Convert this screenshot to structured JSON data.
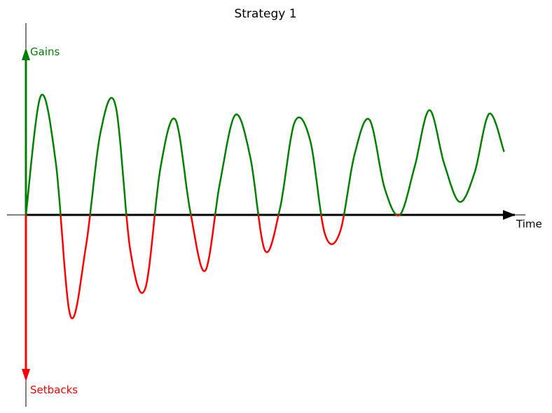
{
  "chart_data": {
    "type": "line",
    "title": "Strategy 1",
    "xlabel": "Time",
    "ylabel_positive": "Gains",
    "ylabel_negative": "Setbacks",
    "grid": false,
    "xlim": [
      0,
      10
    ],
    "ylim": [
      -1.6,
      1.6
    ],
    "colors": {
      "gains": "#008000",
      "setbacks": "#ff0000",
      "axis": "#000000"
    },
    "series": [
      {
        "x": [
          0,
          0.31,
          0.62,
          0.93,
          1.25,
          1.56,
          1.87,
          2.18,
          2.49,
          2.81,
          3.12,
          3.43,
          3.74,
          4.05,
          4.37,
          4.68,
          4.99,
          5.3,
          5.61,
          5.93,
          6.24,
          6.55,
          6.86,
          7.17,
          7.49,
          7.8,
          8.11,
          8.42,
          8.73,
          9.05,
          9.36,
          9.67,
          9.98
        ],
        "values": [
          0.0,
          1.0,
          0.45,
          -0.85,
          -0.27,
          0.7,
          0.92,
          -0.3,
          -0.62,
          0.4,
          0.8,
          0.03,
          -0.47,
          0.27,
          0.84,
          0.49,
          -0.3,
          0.05,
          0.78,
          0.63,
          -0.16,
          -0.15,
          0.51,
          0.8,
          0.22,
          0.0,
          0.4,
          0.88,
          0.43,
          0.11,
          0.35,
          0.85,
          0.53
        ]
      }
    ]
  }
}
